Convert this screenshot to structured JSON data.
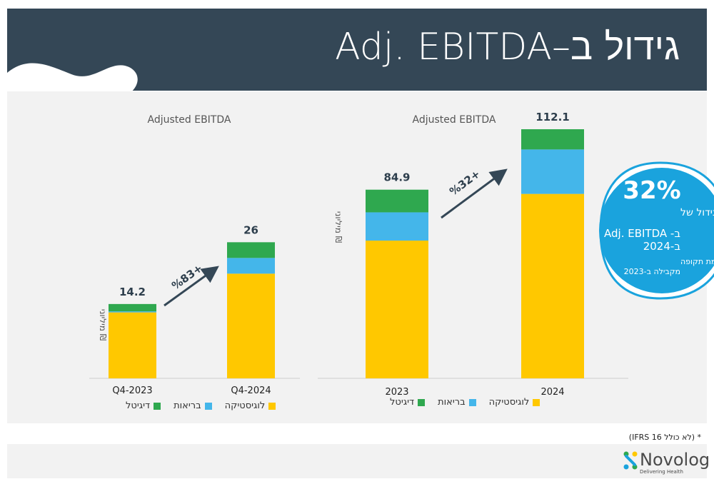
{
  "header": {
    "title": "גידול ב–Adj. EBITDA"
  },
  "chart_data": [
    {
      "type": "bar",
      "stacked": true,
      "title": "Adjusted EBITDA",
      "ylabel": "מיליוני ₪",
      "categories": [
        "Q4-2023",
        "Q4-2024"
      ],
      "totals": [
        14.2,
        26
      ],
      "series": [
        {
          "name": "לוגיסטיקה",
          "values": [
            12.6,
            20.0
          ],
          "color": "#FFC800"
        },
        {
          "name": "בריאות",
          "values": [
            0.2,
            3.0
          ],
          "color": "#44B6EA"
        },
        {
          "name": "דיגיטל",
          "values": [
            1.4,
            3.0
          ],
          "color": "#2FA84F"
        }
      ],
      "growth_label": "%83+",
      "ylim": [
        0,
        45
      ]
    },
    {
      "type": "bar",
      "stacked": true,
      "title": "Adjusted EBITDA",
      "ylabel": "מיליוני ₪",
      "categories": [
        "2023",
        "2024"
      ],
      "totals": [
        84.9,
        112.1
      ],
      "series": [
        {
          "name": "לוגיסטיקה",
          "values": [
            62.0,
            83.0
          ],
          "color": "#FFC800"
        },
        {
          "name": "בריאות",
          "values": [
            12.7,
            20.0
          ],
          "color": "#44B6EA"
        },
        {
          "name": "דיגיטל",
          "values": [
            10.2,
            9.1
          ],
          "color": "#2FA84F"
        }
      ],
      "growth_label": "%32+",
      "ylim": [
        0,
        115
      ]
    }
  ],
  "legend": {
    "items": [
      "לוגיסטיקה",
      "בריאות",
      "דיגיטל"
    ]
  },
  "callout": {
    "percent": "32%",
    "line1": "גידול של",
    "line2": "Adj. EBITDA -ב",
    "line3": "ב-2024",
    "line4": "לעומת תקופה",
    "line5": "מקבילה ב-2023",
    "color": "#1AA3DD"
  },
  "footnote": "* (לא כולל IFRS 16)",
  "logo": {
    "name": "Novolog",
    "tagline": "Delivering Health"
  }
}
